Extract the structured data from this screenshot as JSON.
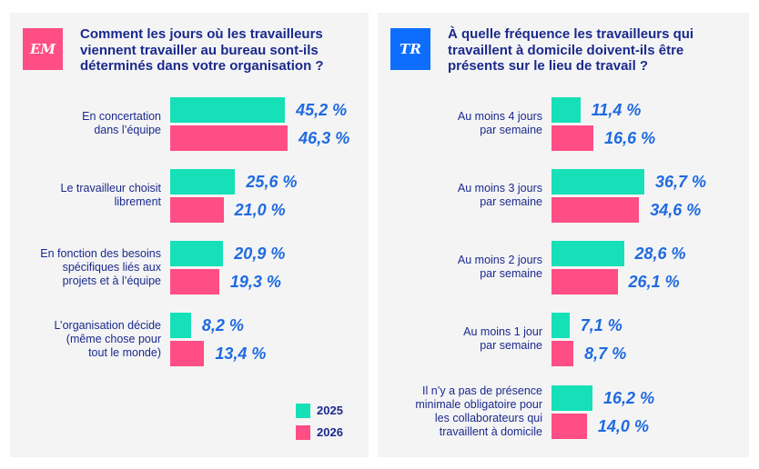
{
  "colors": {
    "series_2025": "#16e0b8",
    "series_2026": "#ff4d85",
    "badge_em": "#ff4d85",
    "badge_tr": "#0d6efd",
    "title": "#1b2a8c",
    "value": "#1f6ae0"
  },
  "chart_data": [
    {
      "type": "bar",
      "orientation": "horizontal",
      "badge": "EM",
      "title": "Comment les jours où les travailleurs viennent travailler au bureau sont-ils déterminés dans votre organisation ?",
      "title_lines": [
        "Comment les jours où les travailleurs",
        "viennent travailler au bureau sont-ils",
        "déterminés dans votre organisation ?"
      ],
      "categories": [
        [
          "En concertation",
          "dans l’équipe"
        ],
        [
          "Le travailleur choisit",
          "librement"
        ],
        [
          "En fonction des besoins",
          "spécifiques liés aux",
          "projets et à l’équipe"
        ],
        [
          "L’organisation décide",
          "(même chose pour",
          "tout le monde)"
        ]
      ],
      "series": [
        {
          "name": "2025",
          "values": [
            45.2,
            25.6,
            20.9,
            8.2
          ],
          "labels": [
            "45,2 %",
            "25,6 %",
            "20,9 %",
            "8,2 %"
          ]
        },
        {
          "name": "2026",
          "values": [
            46.3,
            21.0,
            19.3,
            13.4
          ],
          "labels": [
            "46,3 %",
            "21,0 %",
            "19,3 %",
            "13,4 %"
          ]
        }
      ],
      "legend": [
        "2025",
        "2026"
      ],
      "legend_position": "bottom-right",
      "unit": "%"
    },
    {
      "type": "bar",
      "orientation": "horizontal",
      "badge": "TR",
      "title": "À quelle fréquence les travailleurs qui travaillent à domicile doivent-ils être présents sur le lieu de travail ?",
      "title_lines": [
        "À quelle fréquence les travailleurs qui",
        "travaillent à domicile doivent-ils être",
        "présents sur le lieu de travail ?"
      ],
      "categories": [
        [
          "Au moins 4 jours",
          "par semaine"
        ],
        [
          "Au moins 3 jours",
          "par semaine"
        ],
        [
          "Au moins 2 jours",
          "par semaine"
        ],
        [
          "Au moins 1 jour",
          "par semaine"
        ],
        [
          "Il n’y a pas de présence",
          "minimale obligatoire pour",
          "les collaborateurs qui",
          "travaillent à domicile"
        ]
      ],
      "series": [
        {
          "name": "2025",
          "values": [
            11.4,
            36.7,
            28.6,
            7.1,
            16.2
          ],
          "labels": [
            "11,4 %",
            "36,7 %",
            "28,6 %",
            "7,1 %",
            "16,2 %"
          ]
        },
        {
          "name": "2026",
          "values": [
            16.6,
            34.6,
            26.1,
            8.7,
            14.0
          ],
          "labels": [
            "16,6 %",
            "34,6 %",
            "26,1 %",
            "8,7 %",
            "14,0 %"
          ]
        }
      ],
      "unit": "%"
    }
  ]
}
